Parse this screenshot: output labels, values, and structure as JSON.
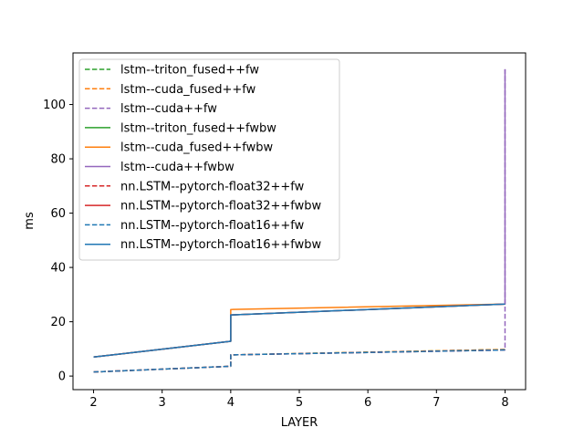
{
  "chart_data": {
    "type": "line",
    "title": "",
    "xlabel": "LAYER",
    "ylabel": "ms",
    "xlim": [
      1.7,
      8.3
    ],
    "ylim": [
      -5,
      119
    ],
    "xticks": [
      2,
      3,
      4,
      5,
      6,
      7,
      8
    ],
    "yticks": [
      0,
      20,
      40,
      60,
      80,
      100
    ],
    "xtick_labels": [
      "2",
      "3",
      "4",
      "5",
      "6",
      "7",
      "8"
    ],
    "ytick_labels": [
      "0",
      "20",
      "40",
      "60",
      "80",
      "100"
    ],
    "grid": false,
    "legend_position": "top-left",
    "series": [
      {
        "name": "lstm--triton_fused++fw",
        "color": "#2ca02c",
        "dash": "dashed",
        "x": [
          2,
          4,
          4,
          8,
          8
        ],
        "y": [
          1.5,
          3.6,
          7.8,
          9.8,
          9.8
        ]
      },
      {
        "name": "lstm--cuda_fused++fw",
        "color": "#ff7f0e",
        "dash": "dashed",
        "x": [
          2,
          4,
          4,
          8,
          8
        ],
        "y": [
          1.5,
          3.6,
          7.8,
          9.8,
          9.8
        ]
      },
      {
        "name": "lstm--cuda++fw",
        "color": "#9467bd",
        "dash": "dashed",
        "x": [
          2,
          4,
          4,
          8,
          8
        ],
        "y": [
          1.5,
          3.6,
          7.8,
          9.6,
          113
        ]
      },
      {
        "name": "lstm--triton_fused++fwbw",
        "color": "#2ca02c",
        "dash": "solid",
        "x": [
          2,
          4,
          4,
          8,
          8
        ],
        "y": [
          7.0,
          12.8,
          22.5,
          26.5,
          26.5
        ]
      },
      {
        "name": "lstm--cuda_fused++fwbw",
        "color": "#ff7f0e",
        "dash": "solid",
        "x": [
          2,
          4,
          4,
          8,
          8
        ],
        "y": [
          7.0,
          12.8,
          24.5,
          26.5,
          26.5
        ]
      },
      {
        "name": "lstm--cuda++fwbw",
        "color": "#9467bd",
        "dash": "solid",
        "x": [
          2,
          4,
          4,
          8,
          8
        ],
        "y": [
          7.0,
          12.8,
          22.5,
          26.5,
          113
        ]
      },
      {
        "name": "nn.LSTM--pytorch-float32++fw",
        "color": "#d62728",
        "dash": "dashed",
        "x": [
          2,
          4,
          4,
          8,
          8
        ],
        "y": [
          1.5,
          3.6,
          7.8,
          9.6,
          9.6
        ]
      },
      {
        "name": "nn.LSTM--pytorch-float32++fwbw",
        "color": "#d62728",
        "dash": "solid",
        "x": [
          2,
          4,
          4,
          8,
          8
        ],
        "y": [
          7.0,
          12.8,
          22.5,
          26.5,
          26.5
        ]
      },
      {
        "name": "nn.LSTM--pytorch-float16++fw",
        "color": "#1f77b4",
        "dash": "dashed",
        "x": [
          2,
          4,
          4,
          8,
          8
        ],
        "y": [
          1.5,
          3.6,
          7.8,
          9.6,
          9.6
        ]
      },
      {
        "name": "nn.LSTM--pytorch-float16++fwbw",
        "color": "#1f77b4",
        "dash": "solid",
        "x": [
          2,
          4,
          4,
          8,
          8
        ],
        "y": [
          7.0,
          12.8,
          22.5,
          26.5,
          26.5
        ]
      }
    ]
  }
}
